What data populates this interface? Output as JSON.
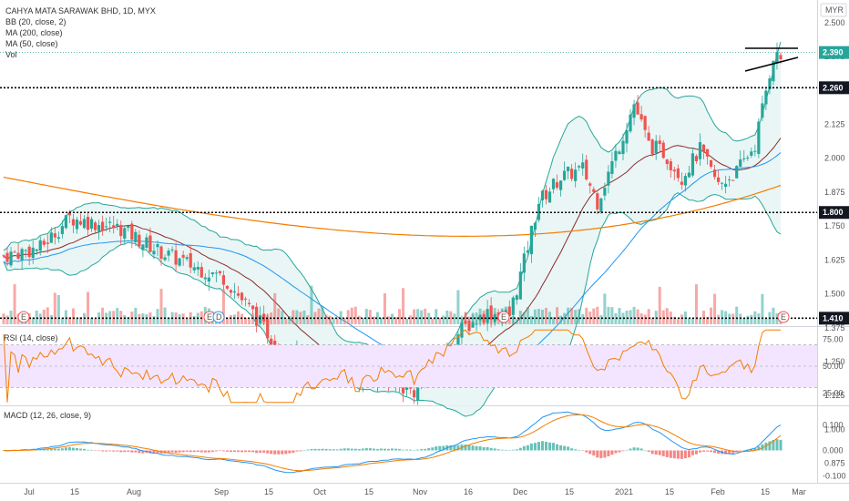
{
  "header": {
    "symbol": "CAHYA MATA SARAWAK BHD, 1D, MYX",
    "ind_bb": "BB (20, close, 2)",
    "ind_ma200": "MA (200, close)",
    "ind_ma50": "MA (50, close)",
    "ind_vol": "Vol",
    "currency": "MYR"
  },
  "colors": {
    "up": "#26a69a",
    "down": "#ef5350",
    "bb": "#26a69a",
    "bb_fill": "#e3f4f2",
    "ma200": "#f57c00",
    "ma50": "#2196f3",
    "ma20": "#8e2a2a",
    "rsi": "#f57c00",
    "rsi_band": "#f3e5ff",
    "macd": "#2196f3",
    "signal": "#f57c00",
    "tag_green": "#26a69a",
    "tag_black": "#131722"
  },
  "chart_data": {
    "type": "candlestick",
    "price_axis": {
      "ticks": [
        "2.500",
        "2.375",
        "2.250",
        "2.125",
        "2.000",
        "1.875",
        "1.750",
        "1.625",
        "1.500",
        "1.375",
        "1.250",
        "1.125",
        "1.000",
        "0.875"
      ],
      "ylim": [
        0.84,
        2.55
      ]
    },
    "time_axis": {
      "labels": [
        "Jul",
        "15",
        "Aug",
        "Sep",
        "15",
        "Oct",
        "15",
        "Nov",
        "16",
        "Dec",
        "15",
        "2021",
        "15",
        "Feb",
        "15",
        "Mar"
      ]
    },
    "last_price": "2.390",
    "horizontal_levels": [
      {
        "value": 2.26,
        "label": "2.260"
      },
      {
        "value": 1.8,
        "label": "1.800"
      },
      {
        "value": 1.41,
        "label": "1.410"
      }
    ],
    "earnings_markers": [
      "E",
      "E",
      "D",
      "E",
      "E"
    ],
    "rsi": {
      "title": "RSI (14, close)",
      "ticks": [
        "75.00",
        "50.00",
        "25.00"
      ],
      "upper": 70,
      "lower": 30,
      "ylim": [
        15,
        85
      ]
    },
    "macd": {
      "title": "MACD (12, 26, close, 9)",
      "ticks": [
        "0.100",
        "0.000",
        "-0.100"
      ],
      "ylim": [
        -0.12,
        0.17
      ]
    }
  }
}
